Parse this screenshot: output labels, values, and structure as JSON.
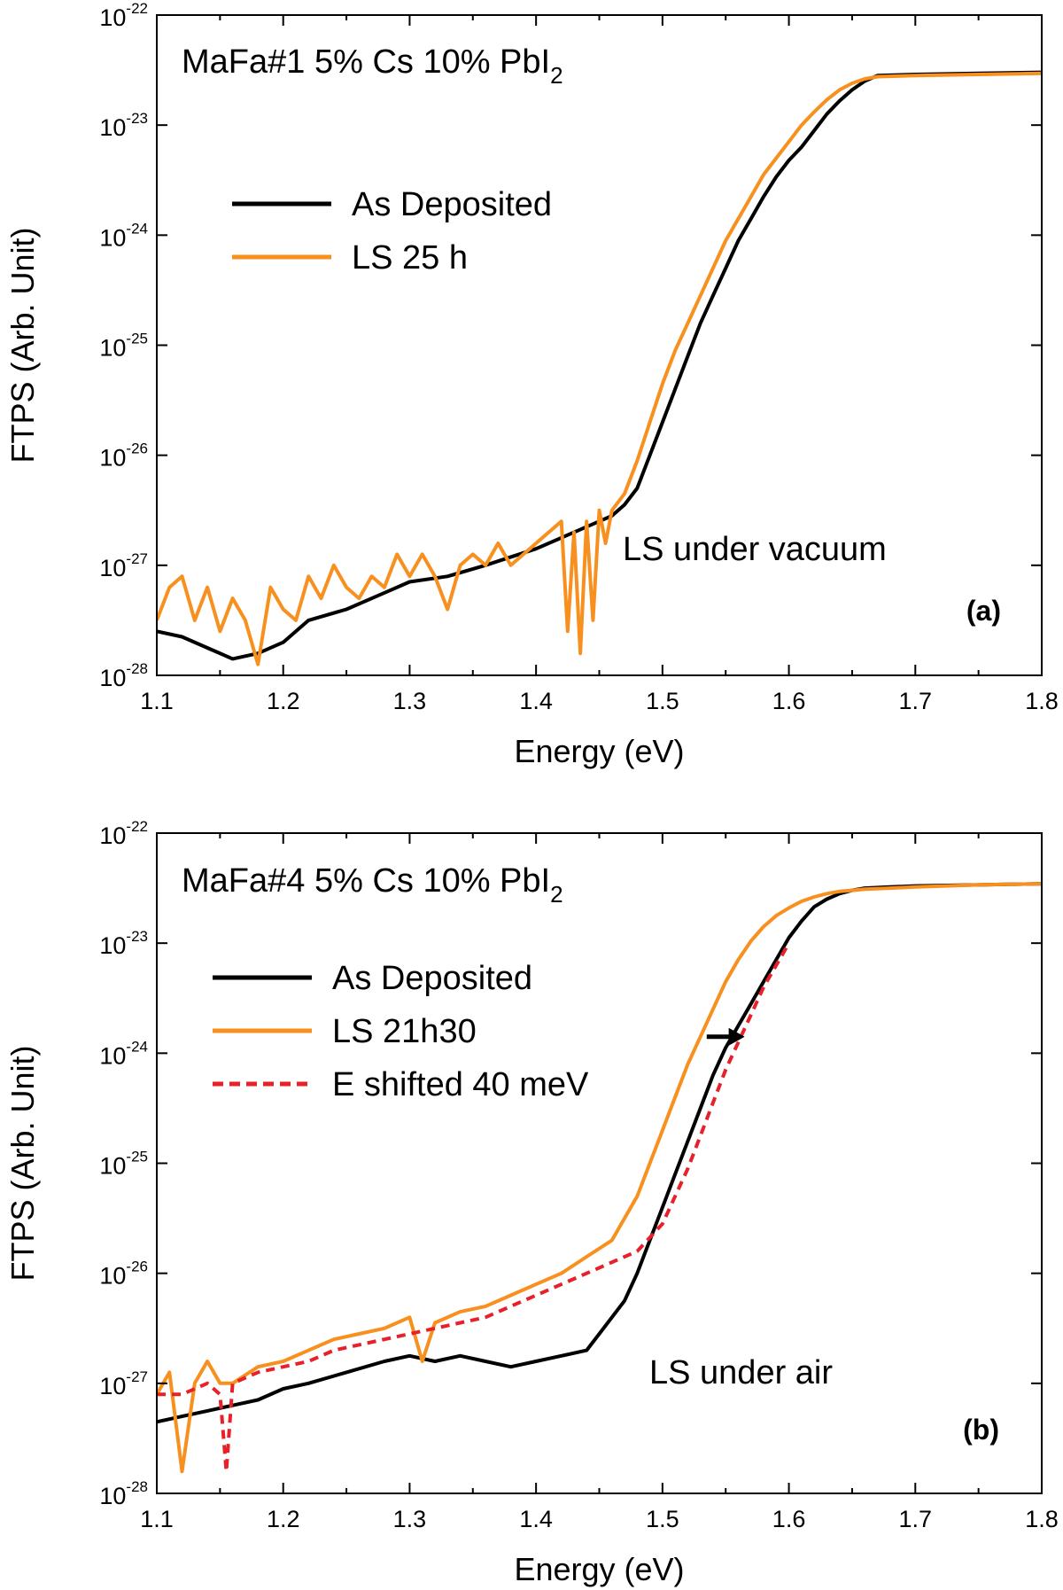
{
  "chart_data": [
    {
      "type": "line",
      "panel": "(a)",
      "title": "MaFa#1 5% Cs 10% PbI2",
      "title_main": "MaFa#1 5% Cs 10% PbI",
      "title_sub": "2",
      "annotation": "LS under vacuum",
      "xlabel": "Energy (eV)",
      "ylabel": "FTPS (Arb. Unit)",
      "xlim": [
        1.1,
        1.8
      ],
      "ylim_log10": [
        -28,
        -22
      ],
      "xticks": [
        "1.1",
        "1.2",
        "1.3",
        "1.4",
        "1.5",
        "1.6",
        "1.7",
        "1.8"
      ],
      "ytick_exponents": [
        "-28",
        "-27",
        "-26",
        "-25",
        "-24",
        "-23",
        "-22"
      ],
      "ytick_base": "10",
      "series": [
        {
          "name": "As Deposited",
          "color": "#000000",
          "dash": false,
          "x": [
            1.1,
            1.12,
            1.14,
            1.16,
            1.18,
            1.2,
            1.22,
            1.25,
            1.28,
            1.3,
            1.33,
            1.36,
            1.4,
            1.43,
            1.45,
            1.46,
            1.47,
            1.48,
            1.49,
            1.5,
            1.51,
            1.52,
            1.53,
            1.54,
            1.55,
            1.56,
            1.57,
            1.58,
            1.59,
            1.6,
            1.61,
            1.62,
            1.63,
            1.64,
            1.65,
            1.66,
            1.67,
            1.7,
            1.75,
            1.8
          ],
          "logy": [
            -27.6,
            -27.65,
            -27.75,
            -27.85,
            -27.8,
            -27.7,
            -27.5,
            -27.4,
            -27.25,
            -27.15,
            -27.1,
            -27.0,
            -26.85,
            -26.7,
            -26.6,
            -26.55,
            -26.45,
            -26.3,
            -26.0,
            -25.7,
            -25.4,
            -25.1,
            -24.8,
            -24.55,
            -24.3,
            -24.05,
            -23.85,
            -23.65,
            -23.47,
            -23.32,
            -23.2,
            -23.05,
            -22.9,
            -22.78,
            -22.68,
            -22.6,
            -22.55,
            -22.54,
            -22.53,
            -22.52
          ]
        },
        {
          "name": "LS 25 h",
          "color": "#f7901e",
          "dash": false,
          "x": [
            1.1,
            1.11,
            1.12,
            1.13,
            1.14,
            1.15,
            1.16,
            1.17,
            1.18,
            1.19,
            1.2,
            1.21,
            1.22,
            1.23,
            1.24,
            1.25,
            1.26,
            1.27,
            1.28,
            1.29,
            1.3,
            1.31,
            1.32,
            1.33,
            1.34,
            1.35,
            1.36,
            1.37,
            1.38,
            1.39,
            1.4,
            1.41,
            1.42,
            1.425,
            1.43,
            1.435,
            1.44,
            1.445,
            1.45,
            1.455,
            1.46,
            1.47,
            1.48,
            1.49,
            1.5,
            1.51,
            1.52,
            1.53,
            1.54,
            1.55,
            1.56,
            1.57,
            1.58,
            1.59,
            1.6,
            1.61,
            1.62,
            1.63,
            1.64,
            1.65,
            1.66,
            1.67,
            1.7,
            1.75,
            1.8
          ],
          "logy": [
            -27.5,
            -27.2,
            -27.1,
            -27.5,
            -27.2,
            -27.6,
            -27.3,
            -27.5,
            -27.9,
            -27.2,
            -27.4,
            -27.5,
            -27.1,
            -27.3,
            -27.0,
            -27.2,
            -27.3,
            -27.1,
            -27.2,
            -26.9,
            -27.1,
            -26.9,
            -27.1,
            -27.4,
            -27.0,
            -26.9,
            -27.0,
            -26.8,
            -27.0,
            -26.9,
            -26.8,
            -26.7,
            -26.6,
            -27.6,
            -26.7,
            -27.8,
            -26.6,
            -27.5,
            -26.5,
            -26.8,
            -26.5,
            -26.35,
            -26.05,
            -25.7,
            -25.35,
            -25.05,
            -24.8,
            -24.55,
            -24.3,
            -24.05,
            -23.85,
            -23.65,
            -23.45,
            -23.3,
            -23.15,
            -23.0,
            -22.88,
            -22.77,
            -22.68,
            -22.62,
            -22.58,
            -22.56,
            -22.55,
            -22.54,
            -22.53
          ]
        }
      ],
      "legend": [
        {
          "label": "As Deposited"
        },
        {
          "label": "LS 25 h"
        }
      ]
    },
    {
      "type": "line",
      "panel": "(b)",
      "title": "MaFa#4 5% Cs 10% PbI2",
      "title_main": "MaFa#4 5% Cs 10% PbI",
      "title_sub": "2",
      "annotation": "LS under air",
      "xlabel": "Energy (eV)",
      "ylabel": "FTPS (Arb. Unit)",
      "xlim": [
        1.1,
        1.8
      ],
      "ylim_log10": [
        -28,
        -22
      ],
      "xticks": [
        "1.1",
        "1.2",
        "1.3",
        "1.4",
        "1.5",
        "1.6",
        "1.7",
        "1.8"
      ],
      "ytick_exponents": [
        "-28",
        "-27",
        "-26",
        "-25",
        "-24",
        "-23",
        "-22"
      ],
      "ytick_base": "10",
      "series": [
        {
          "name": "As Deposited",
          "color": "#000000",
          "dash": false,
          "x": [
            1.1,
            1.12,
            1.14,
            1.16,
            1.18,
            1.2,
            1.22,
            1.25,
            1.28,
            1.3,
            1.32,
            1.34,
            1.36,
            1.38,
            1.4,
            1.42,
            1.44,
            1.45,
            1.46,
            1.47,
            1.48,
            1.49,
            1.5,
            1.51,
            1.52,
            1.53,
            1.54,
            1.55,
            1.56,
            1.57,
            1.58,
            1.59,
            1.6,
            1.61,
            1.62,
            1.63,
            1.64,
            1.65,
            1.66,
            1.68,
            1.7,
            1.75,
            1.8
          ],
          "logy": [
            -27.35,
            -27.3,
            -27.25,
            -27.2,
            -27.15,
            -27.05,
            -27.0,
            -26.9,
            -26.8,
            -26.75,
            -26.8,
            -26.75,
            -26.8,
            -26.85,
            -26.8,
            -26.75,
            -26.7,
            -26.55,
            -26.4,
            -26.25,
            -26.0,
            -25.7,
            -25.4,
            -25.1,
            -24.8,
            -24.5,
            -24.2,
            -23.95,
            -23.75,
            -23.55,
            -23.35,
            -23.15,
            -22.95,
            -22.8,
            -22.67,
            -22.6,
            -22.55,
            -22.52,
            -22.5,
            -22.49,
            -22.48,
            -22.47,
            -22.46
          ]
        },
        {
          "name": "LS 21h30",
          "color": "#f7901e",
          "dash": false,
          "x": [
            1.1,
            1.11,
            1.12,
            1.13,
            1.14,
            1.15,
            1.16,
            1.18,
            1.2,
            1.22,
            1.24,
            1.26,
            1.28,
            1.3,
            1.31,
            1.32,
            1.34,
            1.36,
            1.38,
            1.4,
            1.42,
            1.44,
            1.46,
            1.47,
            1.48,
            1.49,
            1.5,
            1.51,
            1.52,
            1.53,
            1.54,
            1.55,
            1.56,
            1.57,
            1.58,
            1.59,
            1.6,
            1.61,
            1.62,
            1.63,
            1.64,
            1.65,
            1.66,
            1.68,
            1.7,
            1.75,
            1.8
          ],
          "logy": [
            -27.1,
            -26.9,
            -27.8,
            -27.0,
            -26.8,
            -27.0,
            -27.0,
            -26.85,
            -26.8,
            -26.7,
            -26.6,
            -26.55,
            -26.5,
            -26.4,
            -26.8,
            -26.45,
            -26.35,
            -26.3,
            -26.2,
            -26.1,
            -26.0,
            -25.85,
            -25.7,
            -25.5,
            -25.3,
            -25.0,
            -24.7,
            -24.4,
            -24.1,
            -23.85,
            -23.6,
            -23.35,
            -23.15,
            -22.98,
            -22.85,
            -22.75,
            -22.68,
            -22.62,
            -22.58,
            -22.55,
            -22.53,
            -22.52,
            -22.51,
            -22.5,
            -22.49,
            -22.47,
            -22.46
          ]
        },
        {
          "name": "E shifted 40 meV",
          "color": "#e8202a",
          "dash": true,
          "x": [
            1.1,
            1.12,
            1.14,
            1.15,
            1.155,
            1.16,
            1.18,
            1.2,
            1.22,
            1.24,
            1.26,
            1.28,
            1.3,
            1.32,
            1.34,
            1.36,
            1.38,
            1.4,
            1.42,
            1.44,
            1.46,
            1.48,
            1.5,
            1.51,
            1.52,
            1.53,
            1.54,
            1.55,
            1.56,
            1.57,
            1.58,
            1.59,
            1.6
          ],
          "logy": [
            -27.1,
            -27.1,
            -27.0,
            -27.1,
            -27.8,
            -27.0,
            -26.9,
            -26.85,
            -26.8,
            -26.7,
            -26.65,
            -26.6,
            -26.55,
            -26.5,
            -26.45,
            -26.4,
            -26.3,
            -26.2,
            -26.1,
            -26.0,
            -25.9,
            -25.8,
            -25.55,
            -25.3,
            -25.05,
            -24.75,
            -24.45,
            -24.15,
            -23.9,
            -23.65,
            -23.4,
            -23.2,
            -23.0
          ]
        }
      ],
      "legend": [
        {
          "label": "As Deposited"
        },
        {
          "label": "LS 21h30"
        },
        {
          "label": "E shifted 40 meV"
        }
      ],
      "arrow": {
        "from_x": 1.535,
        "to_x": 1.565,
        "logy": -23.85
      }
    }
  ]
}
